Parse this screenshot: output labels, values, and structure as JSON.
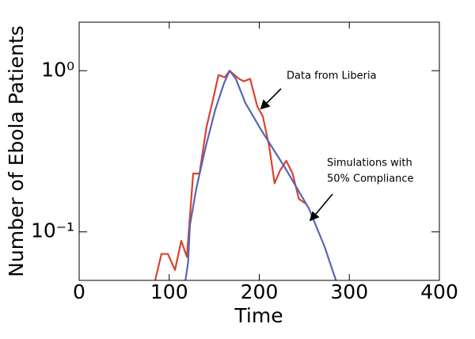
{
  "chart_data": {
    "type": "line",
    "xlabel": "Time",
    "ylabel": "Number of Ebola Patients",
    "xlim": [
      0,
      400
    ],
    "xticks": [
      0,
      100,
      200,
      300,
      400
    ],
    "ylim": [
      0.05,
      2
    ],
    "yticks": [
      {
        "value": 1,
        "label": "10⁰"
      },
      {
        "value": 0.1,
        "label": "10⁻¹"
      }
    ],
    "yscale": "log",
    "grid": false,
    "series": [
      {
        "color": "#d9432f",
        "x": [
          84,
          91.4,
          98.5,
          106.4,
          113.4,
          119.6,
          126.6,
          133.6,
          141.5,
          147.7,
          154.7,
          161.8,
          167,
          177.6,
          182.9,
          189.9,
          197.8,
          204,
          211,
          217,
          223,
          230,
          237,
          244,
          251.4
        ],
        "values": [
          0.049,
          0.073,
          0.073,
          0.058,
          0.088,
          0.07,
          0.23,
          0.23,
          0.45,
          0.63,
          0.94,
          0.91,
          1.0,
          0.89,
          0.86,
          0.89,
          0.6,
          0.52,
          0.34,
          0.2,
          0.24,
          0.276,
          0.23,
          0.16,
          0.15
        ]
      },
      {
        "color": "#5566b8",
        "x": [
          117.8,
          121,
          123,
          130,
          140.7,
          151,
          161,
          167,
          174,
          184.6,
          202,
          228.6,
          255,
          272.5,
          285.7
        ],
        "values": [
          0.049,
          0.065,
          0.11,
          0.185,
          0.34,
          0.57,
          0.84,
          1.0,
          0.89,
          0.63,
          0.43,
          0.25,
          0.14,
          0.081,
          0.049
        ]
      }
    ],
    "annotations": [
      "Data from Liberia",
      "Simulations with",
      "50% Compliance"
    ]
  }
}
